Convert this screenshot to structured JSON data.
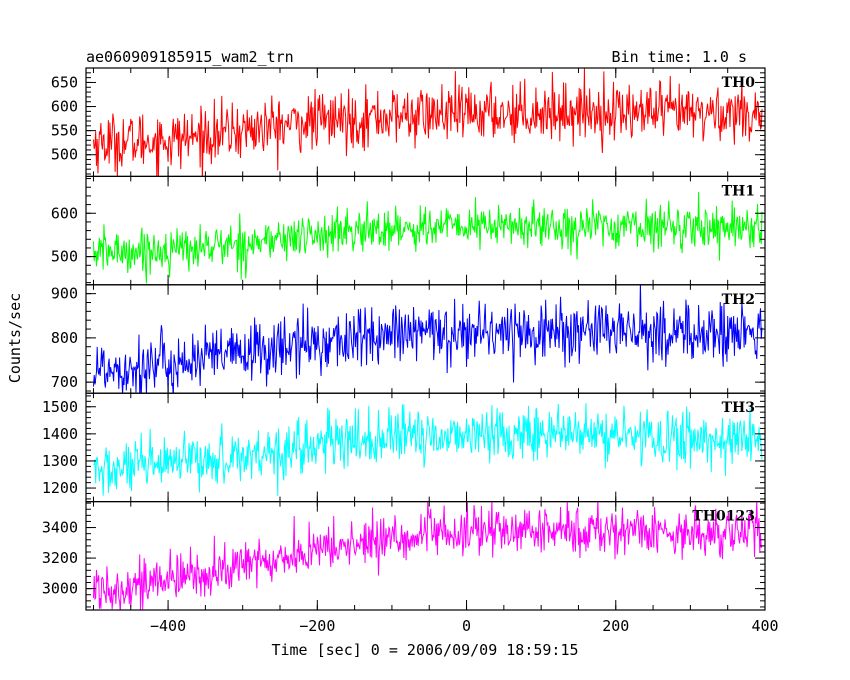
{
  "header": {
    "title": "ae060909185915_wam2_trn",
    "bin_time": "Bin time: 1.0 s"
  },
  "chart_data": {
    "type": "line",
    "xlabel": "Time [sec] 0 = 2006/09/09 18:59:15",
    "ylabel": "Counts/sec",
    "xlim": [
      -510,
      400
    ],
    "x_ticks": [
      -400,
      -200,
      0,
      200,
      400
    ],
    "x_tick_labels": [
      "−400",
      "−200",
      "0",
      "200",
      "400"
    ],
    "x_start": -500,
    "x_end": 396,
    "bin": 1.0,
    "panels": [
      {
        "name": "TH0",
        "color": "#ff0000",
        "ylim": [
          455,
          680
        ],
        "yticks": [
          500,
          550,
          600,
          650
        ],
        "trend": [
          [
            -500,
            525
          ],
          [
            -400,
            530
          ],
          [
            -300,
            550
          ],
          [
            -200,
            570
          ],
          [
            -100,
            580
          ],
          [
            0,
            585
          ],
          [
            100,
            590
          ],
          [
            200,
            590
          ],
          [
            300,
            585
          ],
          [
            396,
            590
          ]
        ],
        "noise": 30
      },
      {
        "name": "TH1",
        "color": "#00ff00",
        "ylim": [
          435,
          685
        ],
        "yticks": [
          500,
          600
        ],
        "trend": [
          [
            -500,
            510
          ],
          [
            -400,
            515
          ],
          [
            -300,
            530
          ],
          [
            -200,
            550
          ],
          [
            -100,
            565
          ],
          [
            0,
            570
          ],
          [
            100,
            570
          ],
          [
            200,
            570
          ],
          [
            300,
            570
          ],
          [
            396,
            570
          ]
        ],
        "noise": 25
      },
      {
        "name": "TH2",
        "color": "#0000ff",
        "ylim": [
          675,
          920
        ],
        "yticks": [
          700,
          800,
          900
        ],
        "trend": [
          [
            -500,
            730
          ],
          [
            -400,
            740
          ],
          [
            -300,
            765
          ],
          [
            -200,
            790
          ],
          [
            -100,
            805
          ],
          [
            0,
            815
          ],
          [
            100,
            815
          ],
          [
            200,
            815
          ],
          [
            300,
            810
          ],
          [
            396,
            810
          ]
        ],
        "noise": 35
      },
      {
        "name": "TH3",
        "color": "#00ffff",
        "ylim": [
          1150,
          1550
        ],
        "yticks": [
          1200,
          1300,
          1400,
          1500
        ],
        "trend": [
          [
            -500,
            1260
          ],
          [
            -400,
            1285
          ],
          [
            -300,
            1320
          ],
          [
            -200,
            1360
          ],
          [
            -100,
            1385
          ],
          [
            0,
            1400
          ],
          [
            100,
            1400
          ],
          [
            200,
            1395
          ],
          [
            300,
            1380
          ],
          [
            396,
            1380
          ]
        ],
        "noise": 50
      },
      {
        "name": "TH0123",
        "color": "#ff00ff",
        "ylim": [
          2860,
          3570
        ],
        "yticks": [
          3000,
          3200,
          3400
        ],
        "trend": [
          [
            -500,
            3000
          ],
          [
            -400,
            3050
          ],
          [
            -300,
            3150
          ],
          [
            -200,
            3250
          ],
          [
            -100,
            3330
          ],
          [
            0,
            3370
          ],
          [
            100,
            3380
          ],
          [
            200,
            3380
          ],
          [
            300,
            3370
          ],
          [
            396,
            3370
          ]
        ],
        "noise": 80
      }
    ]
  }
}
